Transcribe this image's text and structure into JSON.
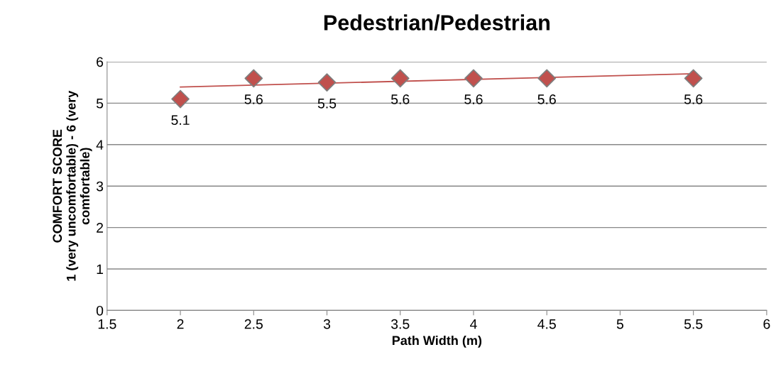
{
  "chart_data": {
    "type": "scatter",
    "title": "Pedestrian/Pedestrian",
    "xlabel": "Path Width (m)",
    "ylabel": "COMFORT SCORE\n1 (very uncomfortable) - 6 (very\ncomfortable)",
    "xlim": [
      1.5,
      6
    ],
    "xticks": [
      1.5,
      2,
      2.5,
      3,
      3.5,
      4,
      4.5,
      5,
      5.5,
      6
    ],
    "ylim": [
      0,
      6
    ],
    "yticks": [
      0,
      1,
      2,
      3,
      4,
      5,
      6
    ],
    "grid": "y",
    "legend": false,
    "series": [
      {
        "color": "#c0504d",
        "marker": "diamond",
        "data_labels": true,
        "x": [
          2,
          2.5,
          3,
          3.5,
          4,
          4.5,
          5.5
        ],
        "values": [
          5.1,
          5.6,
          5.5,
          5.6,
          5.6,
          5.6,
          5.6
        ]
      },
      {
        "type": "line",
        "color": "#c0504d",
        "marker": "none",
        "line_style": "solid",
        "x": [
          2,
          5.5
        ],
        "values": [
          5.39,
          5.71
        ]
      }
    ]
  }
}
